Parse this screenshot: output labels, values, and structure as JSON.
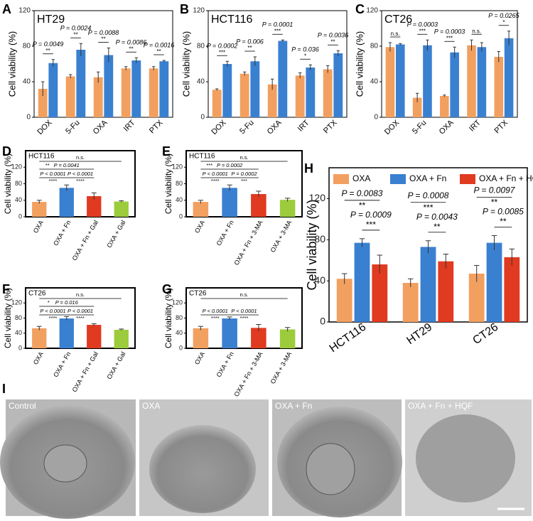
{
  "chart_data": [
    {
      "type": "grouped_bar",
      "panel": "A",
      "title": "HT29",
      "ylabel": "Cell viability (%)",
      "categories": [
        "DOX",
        "5-Fu",
        "OXA",
        "IRT",
        "PTX"
      ],
      "series": [
        {
          "color": "#f2a060",
          "values": [
            32,
            46,
            45,
            55,
            55
          ],
          "errors": [
            8,
            2,
            6,
            2,
            2
          ]
        },
        {
          "color": "#3a80d0",
          "values": [
            61,
            76,
            70,
            64,
            63
          ],
          "errors": [
            4,
            7,
            8,
            3,
            1
          ]
        }
      ],
      "pvalues": [
        "P = 0.0049",
        "P = 0.0024",
        "P = 0.0088",
        "P = 0.0086",
        "P = 0.0016"
      ],
      "significance": [
        "**",
        "**",
        "**",
        "**",
        "**"
      ],
      "ylim": [
        0,
        120
      ],
      "yticks": [
        0,
        40,
        80,
        120
      ]
    },
    {
      "type": "grouped_bar",
      "panel": "B",
      "title": "HCT116",
      "ylabel": "Cell viability (%)",
      "categories": [
        "DOX",
        "5-Fu",
        "OXA",
        "IRT",
        "PTX"
      ],
      "series": [
        {
          "color": "#f2a060",
          "values": [
            31,
            49,
            37,
            47,
            54
          ],
          "errors": [
            1,
            2,
            6,
            3,
            4
          ]
        },
        {
          "color": "#3a80d0",
          "values": [
            60,
            63,
            86,
            56,
            72
          ],
          "errors": [
            3,
            5,
            1,
            3,
            3
          ]
        }
      ],
      "pvalues": [
        "P = 0.0002",
        "P = 0.006",
        "P = 0.0001",
        "P = 0.036",
        "P = 0.0036"
      ],
      "significance": [
        "***",
        "**",
        "***",
        "*",
        "**"
      ],
      "ylim": [
        0,
        120
      ],
      "yticks": [
        0,
        40,
        80,
        120
      ]
    },
    {
      "type": "grouped_bar",
      "panel": "C",
      "title": "CT26",
      "ylabel": "Cell viability (%)",
      "categories": [
        "DOX",
        "5-Fu",
        "OXA",
        "IRT",
        "PTX"
      ],
      "series": [
        {
          "color": "#f2a060",
          "values": [
            79,
            22,
            24,
            81,
            68
          ],
          "errors": [
            5,
            5,
            1,
            6,
            6
          ]
        },
        {
          "color": "#3a80d0",
          "values": [
            82,
            81,
            73,
            79,
            89
          ],
          "errors": [
            1,
            6,
            6,
            5,
            8
          ]
        }
      ],
      "pvalues": [
        null,
        "P = 0.0003",
        "P = 0.0003",
        null,
        "P = 0.0265"
      ],
      "significance": [
        "n.s.",
        "***",
        "***",
        "n.s.",
        "*"
      ],
      "ylim": [
        0,
        120
      ],
      "yticks": [
        0,
        40,
        80,
        120
      ]
    },
    {
      "type": "bar",
      "panel": "D",
      "title": "HCT116",
      "ylabel": "Cell viability (%)",
      "categories": [
        "OXA",
        "OXA + Fn",
        "OXA + Fn + Gal",
        "OXA + Gal"
      ],
      "colors": [
        "#f2a060",
        "#3a80d0",
        "#e03a20",
        "#9ccc3c"
      ],
      "values": [
        36,
        70,
        50,
        37
      ],
      "errors": [
        4,
        7,
        8,
        2
      ],
      "comparisons": [
        {
          "p": "P < 0.0001",
          "stars": "****"
        },
        {
          "p": "P < 0.0001",
          "stars": "****"
        },
        {
          "p": "P = 0.0041",
          "stars": "**"
        },
        {
          "stars": "n.s."
        }
      ],
      "ylim": [
        0,
        160
      ],
      "yticks": [
        0,
        40,
        80,
        120
      ]
    },
    {
      "type": "bar",
      "panel": "E",
      "title": "HCT116",
      "ylabel": "Cell viability (%)",
      "categories": [
        "OXA",
        "OXA + Fn",
        "OXA + Fn + 3-MA",
        "OXA + 3-MA"
      ],
      "colors": [
        "#f2a060",
        "#3a80d0",
        "#e03a20",
        "#9ccc3c"
      ],
      "values": [
        36,
        70,
        55,
        41
      ],
      "errors": [
        4,
        7,
        7,
        4
      ],
      "comparisons": [
        {
          "p": "P < 0.0001",
          "stars": "****"
        },
        {
          "p": "P = 0.0002",
          "stars": "***"
        },
        {
          "p": "P = 0.0002",
          "stars": "***"
        },
        {
          "stars": "n.s."
        }
      ],
      "ylim": [
        0,
        160
      ],
      "yticks": [
        0,
        40,
        80,
        120
      ]
    },
    {
      "type": "bar",
      "panel": "F",
      "title": "CT26",
      "ylabel": "Cell viability (%)",
      "categories": [
        "OXA",
        "OXA + Fn",
        "OXA + Fn + Gal",
        "OXA + Gal"
      ],
      "colors": [
        "#f2a060",
        "#3a80d0",
        "#e03a20",
        "#9ccc3c"
      ],
      "values": [
        53,
        79,
        62,
        49
      ],
      "errors": [
        5,
        5,
        3,
        2
      ],
      "comparisons": [
        {
          "p": "P < 0.0001",
          "stars": "****"
        },
        {
          "p": "P < 0.0001",
          "stars": "****"
        },
        {
          "p": "P = 0.016",
          "stars": "*"
        },
        {
          "stars": "n.s."
        }
      ],
      "ylim": [
        0,
        160
      ],
      "yticks": [
        0,
        40,
        80,
        120
      ]
    },
    {
      "type": "bar",
      "panel": "G",
      "title": "CT26",
      "ylabel": "Cell viability (%)",
      "categories": [
        "OXA",
        "OXA + Fn",
        "OXA + Fn + 3-MA",
        "OXA + 3-MA"
      ],
      "colors": [
        "#f2a060",
        "#3a80d0",
        "#e03a20",
        "#9ccc3c"
      ],
      "values": [
        53,
        79,
        54,
        50
      ],
      "errors": [
        5,
        4,
        9,
        5
      ],
      "comparisons": [
        {
          "p": "P < 0.0001",
          "stars": "****"
        },
        {
          "p": "P < 0.0001",
          "stars": "****"
        },
        {
          "stars": "n.s."
        }
      ],
      "ylim": [
        0,
        160
      ],
      "yticks": [
        0,
        40,
        80,
        120
      ]
    },
    {
      "type": "grouped_bar",
      "panel": "H",
      "ylabel": "Cell viability (%)",
      "categories": [
        "HCT116",
        "HT29",
        "CT26"
      ],
      "series": [
        {
          "name": "OXA",
          "color": "#f2a060",
          "values": [
            42,
            38,
            47
          ],
          "errors": [
            5,
            4,
            8
          ]
        },
        {
          "name": "OXA + Fn",
          "color": "#3a80d0",
          "values": [
            77,
            73,
            77
          ],
          "errors": [
            4,
            6,
            7
          ]
        },
        {
          "name": "OXA + Fn + HQF",
          "color": "#e03a20",
          "values": [
            56,
            59,
            63
          ],
          "errors": [
            9,
            7,
            8
          ]
        }
      ],
      "group_comparisons": [
        [
          {
            "p": "P = 0.0083",
            "stars": "**"
          },
          {
            "p": "P = 0.0009",
            "stars": "***"
          }
        ],
        [
          {
            "p": "P = 0.0008",
            "stars": "***"
          },
          {
            "p": "P = 0.0043",
            "stars": "**"
          }
        ],
        [
          {
            "p": "P = 0.0097",
            "stars": "**"
          },
          {
            "p": "P = 0.0085",
            "stars": "**"
          }
        ]
      ],
      "legend": "top",
      "ylim": [
        0,
        150
      ],
      "yticks": [
        0,
        40,
        80,
        120
      ]
    }
  ],
  "figure_i": {
    "panel": "I",
    "labels": [
      "Control",
      "OXA",
      "OXA + Fn",
      "OXA + Fn + HQF"
    ]
  }
}
